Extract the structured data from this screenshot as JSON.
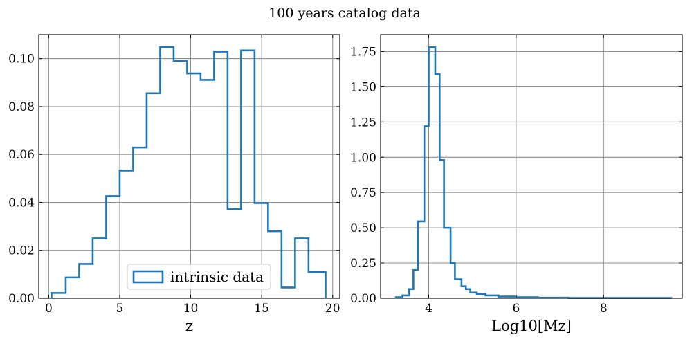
{
  "figure": {
    "title": "100 years catalog data"
  },
  "chart_data": [
    {
      "type": "histogram",
      "xlabel": "z",
      "ylabel": "",
      "xlim": [
        -0.7,
        20.5
      ],
      "ylim": [
        0,
        0.11
      ],
      "xticks": [
        0,
        5,
        10,
        15,
        20
      ],
      "xtick_labels": [
        "0",
        "5",
        "10",
        "15",
        "20"
      ],
      "yticks": [
        0,
        0.02,
        0.04,
        0.06,
        0.08,
        0.1
      ],
      "ytick_labels": [
        "0.00",
        "0.02",
        "0.04",
        "0.06",
        "0.08",
        "0.10"
      ],
      "grid": true,
      "legend": {
        "position": "lower-center",
        "entries": [
          "intrinsic data"
        ]
      },
      "color": "#1f77b4",
      "series": [
        {
          "name": "intrinsic data",
          "bin_edges": [
            0.2,
            1.2,
            2.15,
            3.1,
            4.05,
            5.0,
            5.95,
            6.9,
            7.85,
            8.8,
            9.75,
            10.7,
            11.65,
            12.6,
            13.55,
            14.5,
            15.45,
            16.4,
            17.35,
            18.3,
            19.5
          ],
          "values": [
            0.0022,
            0.0087,
            0.0143,
            0.025,
            0.0426,
            0.0533,
            0.0629,
            0.0855,
            0.1048,
            0.0991,
            0.0938,
            0.0911,
            0.1029,
            0.0372,
            0.1034,
            0.0397,
            0.028,
            0.0045,
            0.025,
            0.0109
          ]
        }
      ]
    },
    {
      "type": "histogram",
      "xlabel": "Log10[Mz]",
      "ylabel": "",
      "xlim": [
        2.9,
        9.8
      ],
      "ylim": [
        0,
        1.87
      ],
      "xticks": [
        4,
        6,
        8
      ],
      "xtick_labels": [
        "4",
        "6",
        "8"
      ],
      "yticks": [
        0,
        0.25,
        0.5,
        0.75,
        1.0,
        1.25,
        1.5,
        1.75
      ],
      "ytick_labels": [
        "0.00",
        "0.25",
        "0.50",
        "0.75",
        "1.00",
        "1.25",
        "1.50",
        "1.75"
      ],
      "grid": true,
      "color": "#1f77b4",
      "series": [
        {
          "bin_edges": [
            3.25,
            3.4,
            3.55,
            3.65,
            3.75,
            3.9,
            4.0,
            4.15,
            4.25,
            4.35,
            4.5,
            4.6,
            4.75,
            4.85,
            4.95,
            5.1,
            5.3,
            5.6,
            6.0,
            6.5,
            7.2,
            9.55
          ],
          "values": [
            0.007,
            0.02,
            0.065,
            0.2,
            0.545,
            1.22,
            1.78,
            1.59,
            0.98,
            0.5,
            0.25,
            0.135,
            0.085,
            0.065,
            0.04,
            0.03,
            0.02,
            0.012,
            0.007,
            0.004,
            0.002
          ]
        }
      ]
    }
  ]
}
